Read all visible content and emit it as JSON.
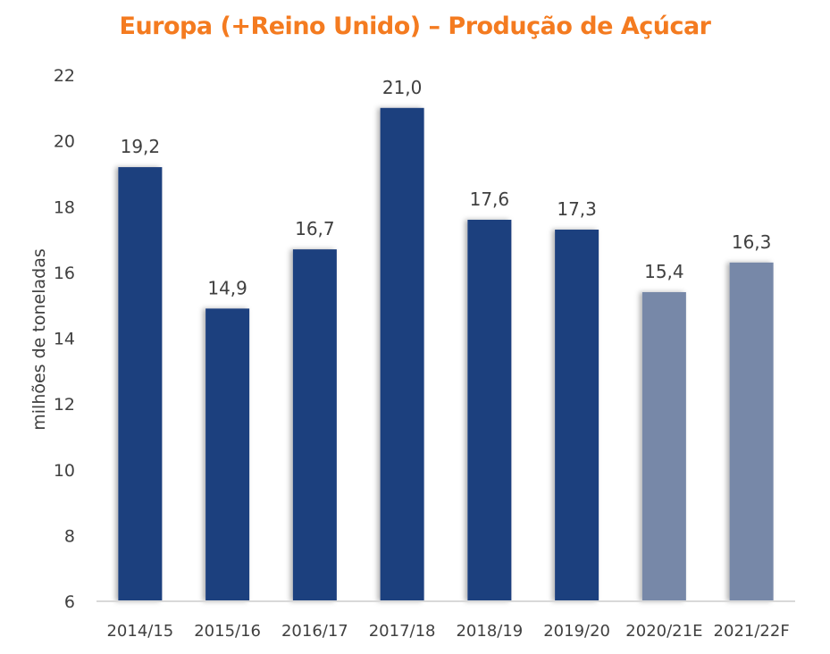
{
  "chart_data": {
    "type": "bar",
    "title": "Europa (+Reino Unido) – Produção de Açúcar",
    "xlabel": "",
    "ylabel": "milhões de toneladas",
    "categories": [
      "2014/15",
      "2015/16",
      "2016/17",
      "2017/18",
      "2018/19",
      "2019/20",
      "2020/21E",
      "2021/22F"
    ],
    "values": [
      19.2,
      14.9,
      16.7,
      21.0,
      17.6,
      17.3,
      15.4,
      16.3
    ],
    "data_labels": [
      "19,2",
      "14,9",
      "16,7",
      "21,0",
      "17,6",
      "17,3",
      "15,4",
      "16,3"
    ],
    "ylim": [
      6,
      22
    ],
    "yticks": [
      6,
      8,
      10,
      12,
      14,
      16,
      18,
      20,
      22
    ],
    "grid": false,
    "bar_colors": [
      "#1f3f7e",
      "#1f3f7e",
      "#1f3f7e",
      "#1f3f7e",
      "#1f3f7e",
      "#1f3f7e",
      "#7788a8",
      "#7788a8"
    ],
    "title_color": "#f47b20"
  }
}
